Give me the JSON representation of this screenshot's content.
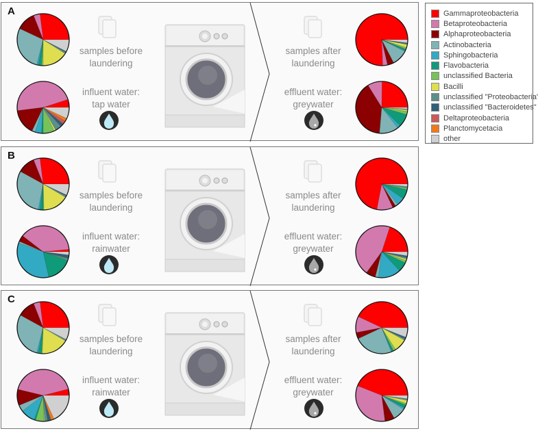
{
  "legend": [
    {
      "label": "Gammaproteobacteria",
      "color": "#ff0000"
    },
    {
      "label": "Betaproteobacteria",
      "color": "#d27aae"
    },
    {
      "label": "Alphaproteobacteria",
      "color": "#8b0000"
    },
    {
      "label": "Actinobacteria",
      "color": "#7fb3b5"
    },
    {
      "label": "Sphingobacteria",
      "color": "#33aac4"
    },
    {
      "label": "Flavobacteria",
      "color": "#0f9a7a"
    },
    {
      "label": "unclassified Bacteria",
      "color": "#77c25a"
    },
    {
      "label": "Bacilli",
      "color": "#dede50"
    },
    {
      "label": "unclassified \"Proteobacteria\"",
      "color": "#5a8f8a"
    },
    {
      "label": "unclassified \"Bacteroidetes\"",
      "color": "#2f5f7a"
    },
    {
      "label": "Deltaproteobacteria",
      "color": "#cc5a5a"
    },
    {
      "label": "Planctomycetacia",
      "color": "#f07a1a"
    },
    {
      "label": "other",
      "color": "#d0d0d0"
    }
  ],
  "panels": [
    {
      "label": "A",
      "before_text": [
        "samples before",
        "laundering"
      ],
      "influent_text": [
        "influent water:",
        "tap water"
      ],
      "after_text": [
        "samples after",
        "laundering"
      ],
      "effluent_text": [
        "effluent water:",
        "greywater"
      ],
      "pies": {
        "before": [
          27,
          4,
          12,
          28,
          1,
          2,
          1,
          16,
          1,
          0.5,
          0,
          0,
          7.5
        ],
        "influent": [
          5,
          47,
          16,
          2,
          4,
          1,
          7,
          1,
          4,
          2,
          2,
          2,
          7
        ],
        "after": [
          76,
          3,
          4,
          10,
          0.5,
          1,
          1,
          2,
          0.5,
          0.5,
          0,
          0,
          2
        ],
        "effluent": [
          25,
          9,
          40,
          12,
          2,
          8,
          2,
          1,
          0.5,
          0,
          0,
          0,
          1
        ]
      }
    },
    {
      "label": "B",
      "before_text": [
        "samples before",
        "laundering"
      ],
      "influent_text": [
        "influent water:",
        "rainwater"
      ],
      "after_text": [
        "samples after",
        "laundering"
      ],
      "effluent_text": [
        "effluent water:",
        "greywater"
      ],
      "pies": {
        "before": [
          27,
          4,
          11,
          30,
          1,
          2,
          0.5,
          16,
          1,
          0.5,
          0,
          0,
          7
        ],
        "influent": [
          1.5,
          38,
          4,
          1,
          34,
          16,
          0.5,
          0,
          1,
          2,
          0,
          0,
          2
        ],
        "after": [
          72,
          10,
          2,
          1.5,
          5,
          6,
          1,
          0,
          1,
          0,
          0,
          0,
          1.5
        ],
        "effluent": [
          20,
          45,
          6,
          2,
          14,
          6,
          1.5,
          1,
          1,
          1,
          0,
          0,
          2.5
        ]
      }
    },
    {
      "label": "C",
      "before_text": [
        "samples before",
        "laundering"
      ],
      "influent_text": [
        "influent water:",
        "rainwater"
      ],
      "after_text": [
        "samples after",
        "laundering"
      ],
      "effluent_text": [
        "effluent water:",
        "greywater"
      ],
      "pies": {
        "before": [
          27,
          4,
          11,
          29,
          1,
          2,
          0.5,
          17,
          1,
          0,
          0,
          0,
          7.5
        ],
        "influent": [
          4,
          42,
          10,
          4,
          9,
          1,
          5,
          0.5,
          2,
          2,
          0,
          2,
          18
        ],
        "after": [
          43,
          10,
          4,
          24,
          0.5,
          1,
          1.5,
          8,
          1,
          1,
          0,
          0,
          6
        ],
        "effluent": [
          44,
          33,
          6,
          8,
          1,
          2,
          1,
          2,
          1,
          0,
          0,
          0,
          2
        ]
      }
    }
  ]
}
